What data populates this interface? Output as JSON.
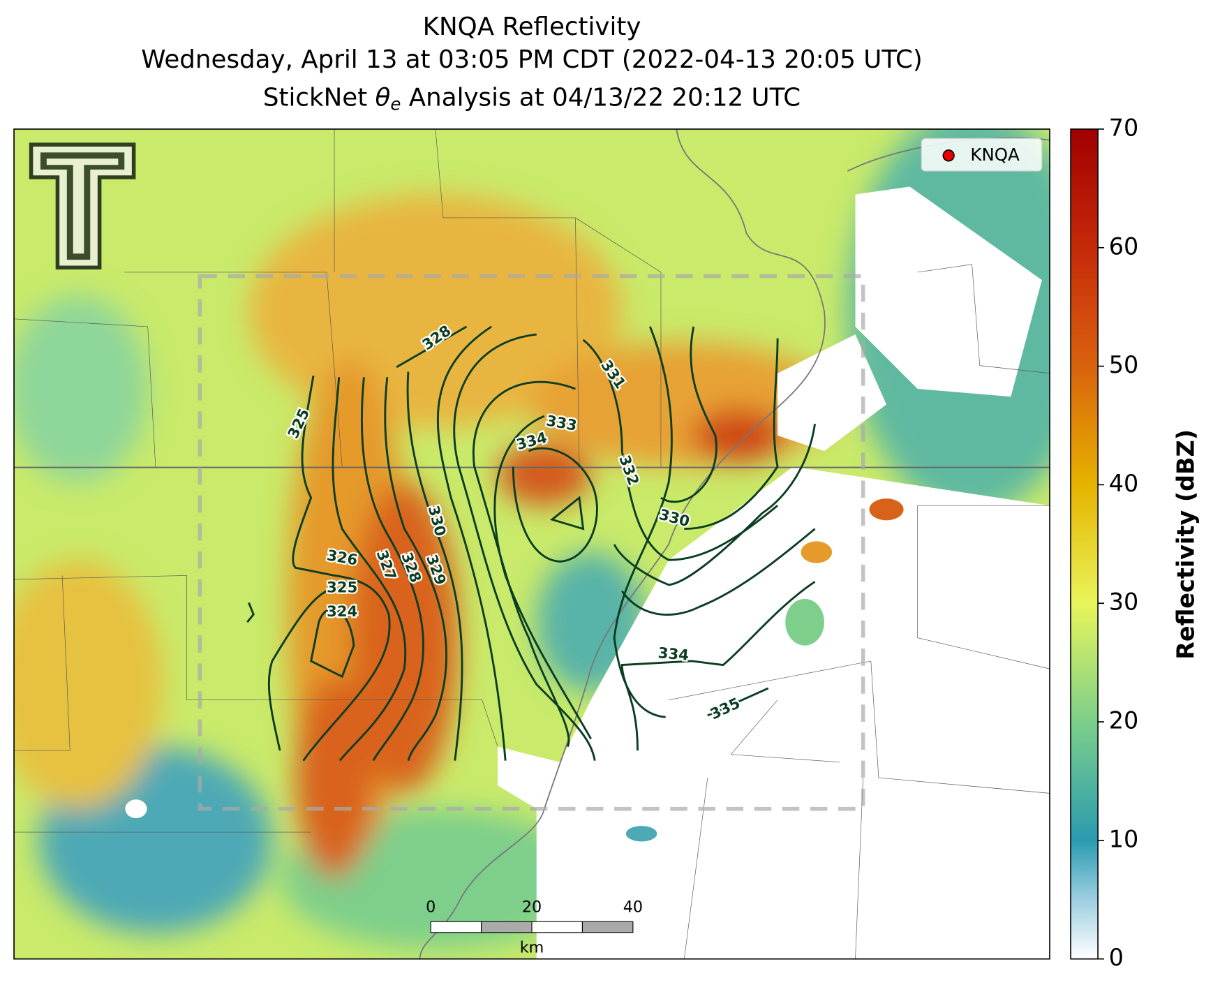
{
  "title": {
    "line1": "KNQA Reflectivity",
    "line2": "Wednesday, April 13 at 03:05 PM CDT (2022-04-13 20:05 UTC)",
    "line3_prefix": "StickNet ",
    "line3_symbol": "θ",
    "line3_subscript": "e",
    "line3_suffix": " Analysis at 04/13/22 20:12 UTC"
  },
  "legend": {
    "label": "KNQA"
  },
  "colorbar": {
    "label": "Reflectivity (dBZ)",
    "lim": [
      0,
      70
    ],
    "ticks": [
      0,
      10,
      20,
      30,
      40,
      50,
      60,
      70
    ]
  },
  "contour_labels": [
    328,
    325,
    331,
    333,
    334,
    332,
    330,
    330,
    326,
    327,
    328,
    329,
    325,
    324,
    334,
    335
  ],
  "scale_bar": {
    "ticks": [
      0,
      20,
      40
    ],
    "unit": "km"
  }
}
